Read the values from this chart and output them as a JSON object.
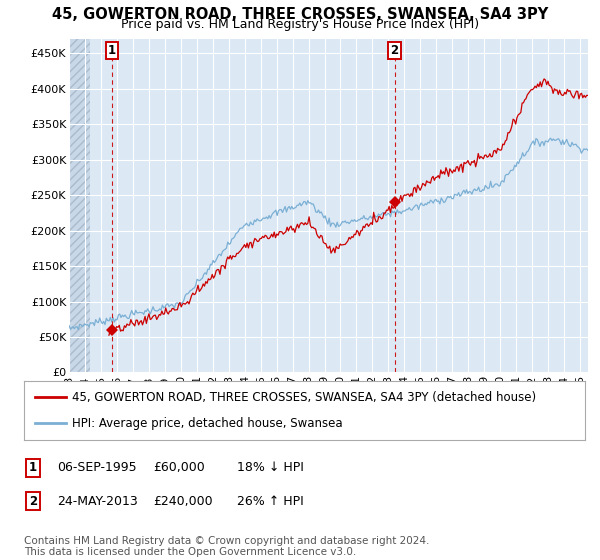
{
  "title": "45, GOWERTON ROAD, THREE CROSSES, SWANSEA, SA4 3PY",
  "subtitle": "Price paid vs. HM Land Registry's House Price Index (HPI)",
  "ylabel_ticks": [
    "£0",
    "£50K",
    "£100K",
    "£150K",
    "£200K",
    "£250K",
    "£300K",
    "£350K",
    "£400K",
    "£450K"
  ],
  "ytick_values": [
    0,
    50000,
    100000,
    150000,
    200000,
    250000,
    300000,
    350000,
    400000,
    450000
  ],
  "ylim": [
    0,
    470000
  ],
  "xlim_start": 1993.0,
  "xlim_end": 2025.5,
  "sale1_x": 1995.69,
  "sale1_y": 60000,
  "sale2_x": 2013.39,
  "sale2_y": 240000,
  "sale1_label": "1",
  "sale2_label": "2",
  "red_line_color": "#cc0000",
  "blue_line_color": "#7bafd4",
  "marker_color": "#cc0000",
  "vline_color": "#cc0000",
  "bg_main": "#dce9f5",
  "bg_hatch_color": "#c8d8e8",
  "grid_color": "#ffffff",
  "legend_label1": "45, GOWERTON ROAD, THREE CROSSES, SWANSEA, SA4 3PY (detached house)",
  "legend_label2": "HPI: Average price, detached house, Swansea",
  "footnote": "Contains HM Land Registry data © Crown copyright and database right 2024.\nThis data is licensed under the Open Government Licence v3.0.",
  "title_fontsize": 10.5,
  "subtitle_fontsize": 9,
  "tick_fontsize": 8,
  "legend_fontsize": 8.5,
  "annotation_fontsize": 9,
  "footnote_fontsize": 7.5
}
